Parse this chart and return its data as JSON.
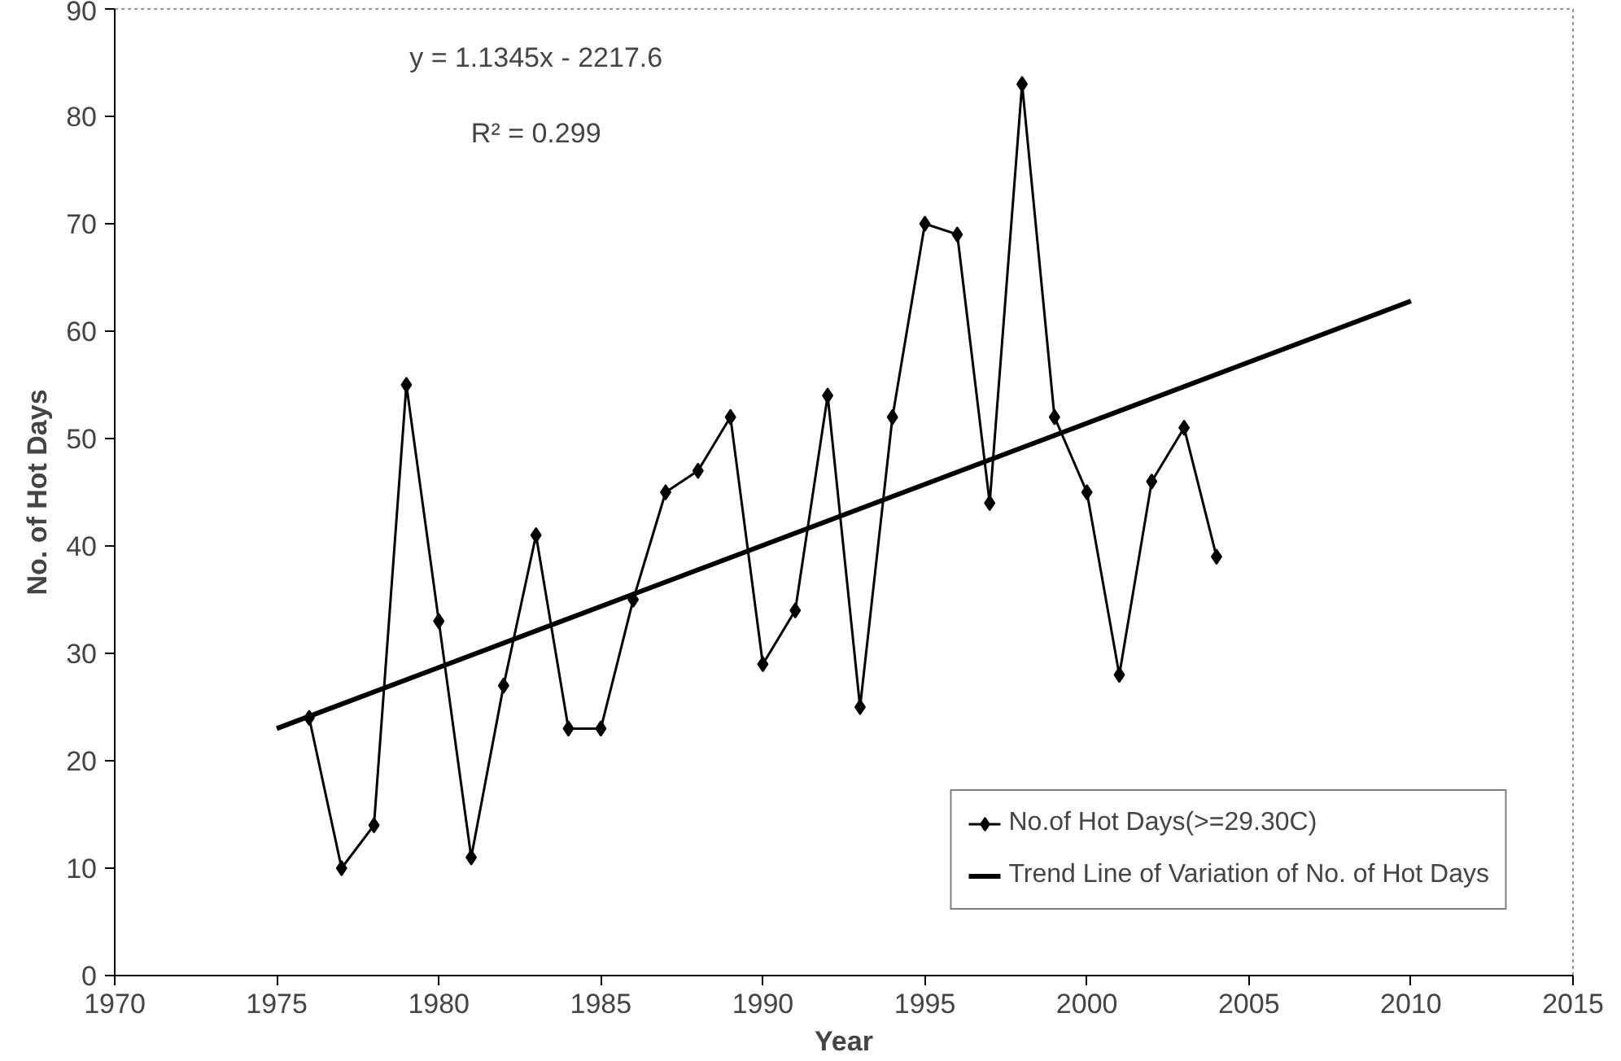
{
  "chart_data": {
    "type": "line",
    "xlabel": "Year",
    "ylabel": "No. of Hot Days",
    "xlim": [
      1970,
      2015
    ],
    "xticks": [
      1970,
      1975,
      1980,
      1985,
      1990,
      1995,
      2000,
      2005,
      2010,
      2015
    ],
    "ylim": [
      0,
      90
    ],
    "yticks": [
      0,
      10,
      20,
      30,
      40,
      50,
      60,
      70,
      80,
      90
    ],
    "grid": false,
    "legend": "bottom right",
    "annotations": [
      "y = 1.1345x - 2217.6",
      "R² = 0.299"
    ],
    "series": [
      {
        "name": "No.of Hot Days(>=29.30C)",
        "color": "#000000",
        "marker": "diamond",
        "x": [
          1976,
          1977,
          1978,
          1979,
          1980,
          1981,
          1982,
          1983,
          1984,
          1985,
          1986,
          1987,
          1988,
          1989,
          1990,
          1991,
          1992,
          1993,
          1994,
          1995,
          1996,
          1997,
          1998,
          1999,
          2000,
          2001,
          2002,
          2003,
          2004
        ],
        "values": [
          24,
          10,
          14,
          55,
          33,
          11,
          27,
          41,
          23,
          23,
          35,
          45,
          47,
          52,
          29,
          34,
          54,
          25,
          52,
          70,
          69,
          44,
          83,
          52,
          45,
          28,
          46,
          51,
          39
        ]
      },
      {
        "name": "Trend Line of Variation of No. of Hot Days",
        "color": "#000000",
        "marker": "none",
        "x": [
          1975,
          2010
        ],
        "values": [
          23,
          62.8
        ]
      }
    ]
  }
}
